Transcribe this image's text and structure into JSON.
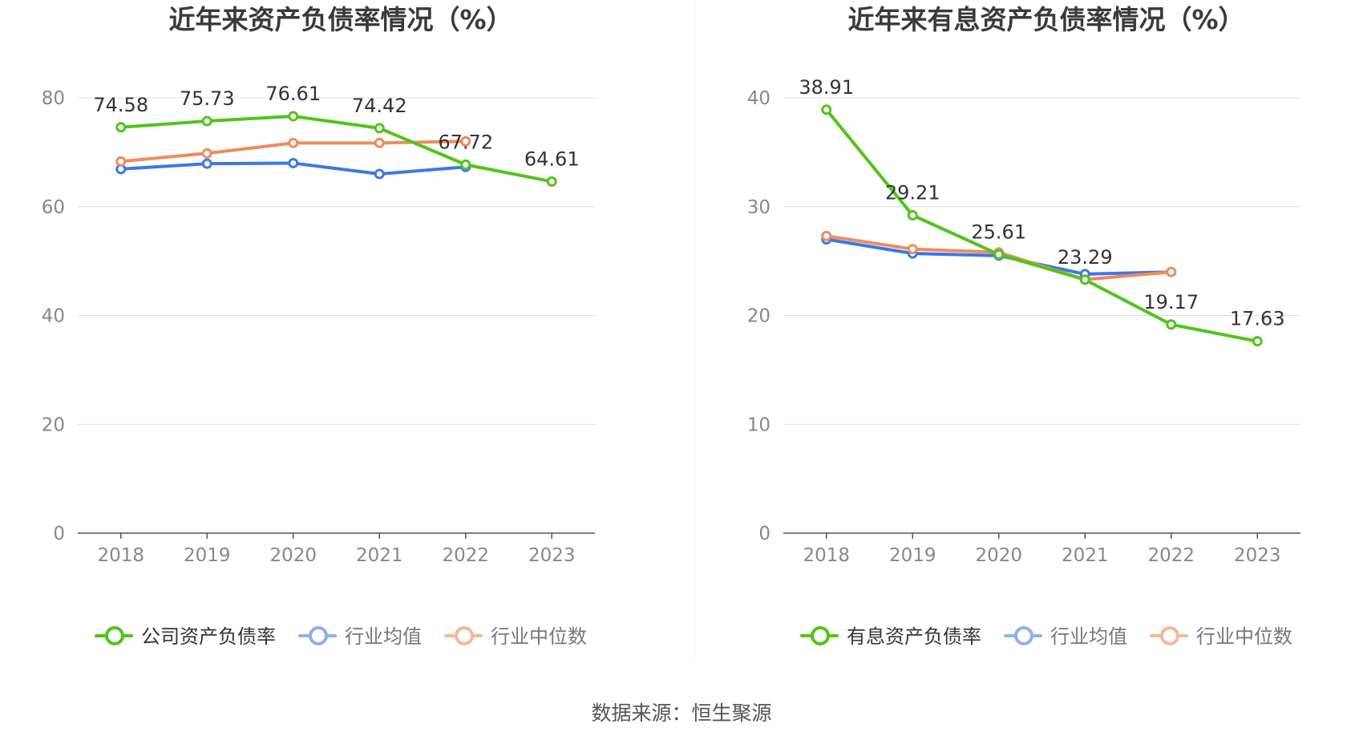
{
  "source": "数据来源：恒生聚源",
  "colors": {
    "company": "#52c41a",
    "avg": "#3b78e7",
    "median": "#f08a5d",
    "grid": "#dcdcf0",
    "axis": "#555555",
    "tick": "#888888"
  },
  "chart_data": [
    {
      "type": "line",
      "title": "近年来资产负债率情况（%）",
      "categories": [
        "2018",
        "2019",
        "2020",
        "2021",
        "2022",
        "2023"
      ],
      "ylim": [
        0,
        80
      ],
      "yticks": [
        0,
        20,
        40,
        60,
        80
      ],
      "grid": true,
      "legend_position": "bottom",
      "series": [
        {
          "name": "公司资产负债率",
          "key": "company",
          "values": [
            74.58,
            75.73,
            76.61,
            74.42,
            67.72,
            64.61
          ],
          "labels": [
            "74.58",
            "75.73",
            "76.61",
            "74.42",
            "67.72",
            "64.61"
          ]
        },
        {
          "name": "行业均值",
          "key": "avg",
          "values": [
            66.9,
            67.9,
            68.0,
            66.0,
            67.3,
            null
          ]
        },
        {
          "name": "行业中位数",
          "key": "median",
          "values": [
            68.3,
            69.8,
            71.7,
            71.7,
            72.0,
            null
          ]
        }
      ]
    },
    {
      "type": "line",
      "title": "近年来有息资产负债率情况（%）",
      "categories": [
        "2018",
        "2019",
        "2020",
        "2021",
        "2022",
        "2023"
      ],
      "ylim": [
        0,
        40
      ],
      "yticks": [
        0,
        10,
        20,
        30,
        40
      ],
      "grid": true,
      "legend_position": "bottom",
      "series": [
        {
          "name": "有息资产负债率",
          "key": "company",
          "values": [
            38.91,
            29.21,
            25.61,
            23.29,
            19.17,
            17.63
          ],
          "labels": [
            "38.91",
            "29.21",
            "25.61",
            "23.29",
            "19.17",
            "17.63"
          ]
        },
        {
          "name": "行业均值",
          "key": "avg",
          "values": [
            27.0,
            25.7,
            25.5,
            23.8,
            24.0,
            null
          ]
        },
        {
          "name": "行业中位数",
          "key": "median",
          "values": [
            27.3,
            26.1,
            25.8,
            23.3,
            24.0,
            null
          ]
        }
      ]
    }
  ]
}
